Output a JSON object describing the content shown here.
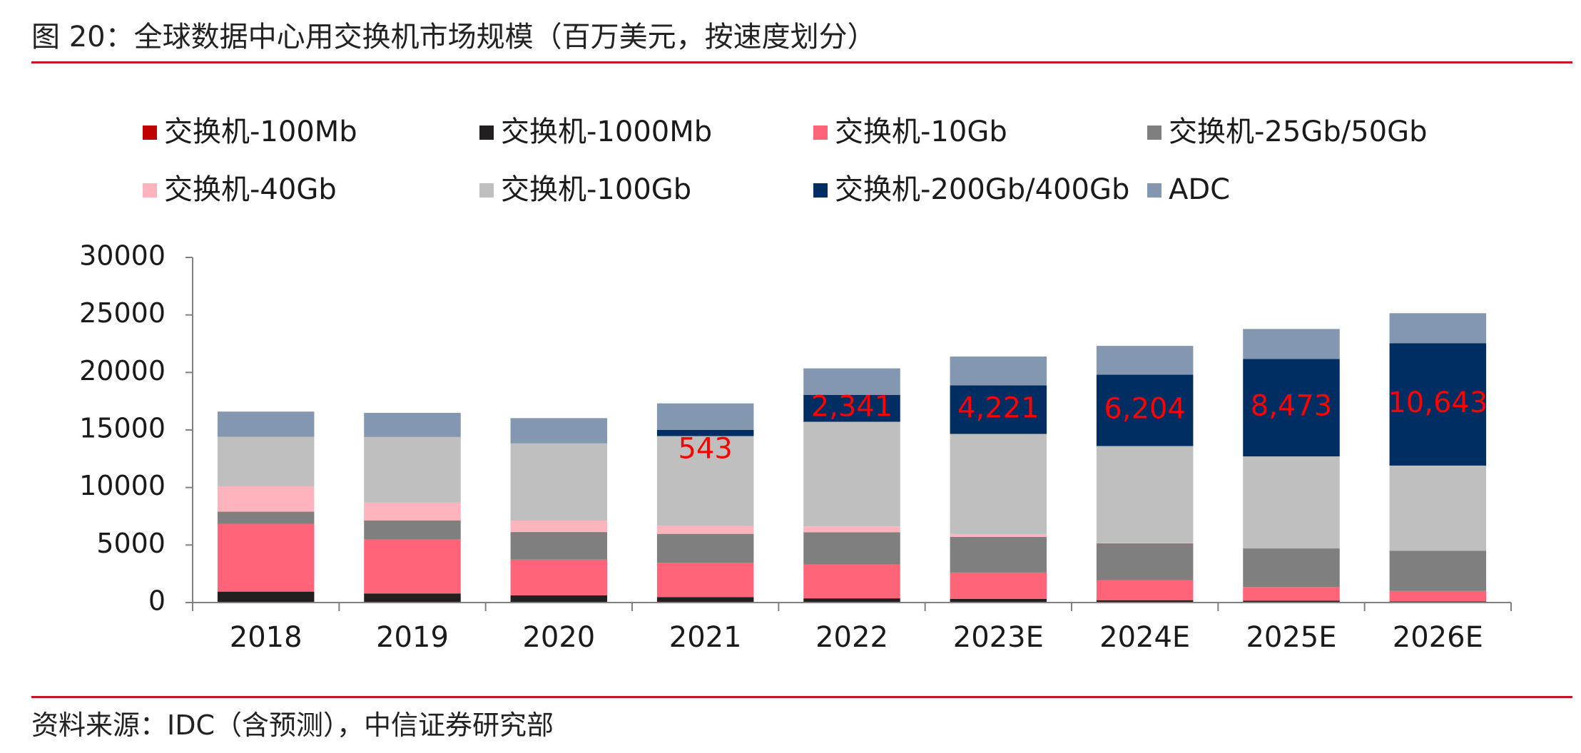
{
  "header": {
    "title": "图 20：全球数据中心用交换机市场规模（百万美元，按速度划分）"
  },
  "footer": {
    "source": "资料来源：IDC（含预测），中信证券研究部"
  },
  "chart_data": {
    "type": "bar",
    "stacked": true,
    "categories": [
      "2018",
      "2019",
      "2020",
      "2021",
      "2022",
      "2023E",
      "2024E",
      "2025E",
      "2026E"
    ],
    "yticks": [
      0,
      5000,
      10000,
      15000,
      20000,
      25000,
      30000
    ],
    "ylim": [
      0,
      30000
    ],
    "legend_position": "top",
    "grid": false,
    "series": [
      {
        "name": "交换机-100Mb",
        "color": "#c00000",
        "values": [
          50,
          40,
          30,
          20,
          15,
          10,
          5,
          5,
          5
        ]
      },
      {
        "name": "交换机-1000Mb",
        "color": "#231f20",
        "values": [
          900,
          750,
          600,
          450,
          350,
          300,
          200,
          150,
          100
        ]
      },
      {
        "name": "交换机-10Gb",
        "color": "#ff6478",
        "values": [
          5900,
          4700,
          3100,
          3000,
          2950,
          2300,
          1750,
          1200,
          900
        ]
      },
      {
        "name": "交换机-25Gb/50Gb",
        "color": "#7f7f7f",
        "values": [
          1050,
          1650,
          2400,
          2500,
          2800,
          3100,
          3200,
          3350,
          3500
        ]
      },
      {
        "name": "交换机-40Gb",
        "color": "#ffb3bc",
        "values": [
          2200,
          1550,
          1000,
          700,
          500,
          250,
          50,
          0,
          0
        ]
      },
      {
        "name": "交换机-100Gb",
        "color": "#bfbfbf",
        "values": [
          4300,
          5700,
          6700,
          7800,
          9100,
          8700,
          8400,
          8000,
          7400
        ]
      },
      {
        "name": "交换机-200Gb/400Gb",
        "color": "#002d62",
        "values": [
          0,
          0,
          0,
          543,
          2341,
          4221,
          6204,
          8473,
          10643
        ]
      },
      {
        "name": "ADC",
        "color": "#8497b0",
        "values": [
          2200,
          2100,
          2200,
          2300,
          2300,
          2500,
          2500,
          2600,
          2600
        ]
      }
    ],
    "annotations": [
      {
        "category": "2021",
        "series": "交换机-200Gb/400Gb",
        "text": "543"
      },
      {
        "category": "2022",
        "series": "交换机-200Gb/400Gb",
        "text": "2,341"
      },
      {
        "category": "2023E",
        "series": "交换机-200Gb/400Gb",
        "text": "4,221"
      },
      {
        "category": "2024E",
        "series": "交换机-200Gb/400Gb",
        "text": "6,204"
      },
      {
        "category": "2025E",
        "series": "交换机-200Gb/400Gb",
        "text": "8,473"
      },
      {
        "category": "2026E",
        "series": "交换机-200Gb/400Gb",
        "text": "10,643"
      }
    ],
    "annotation_color": "#ff0000"
  }
}
